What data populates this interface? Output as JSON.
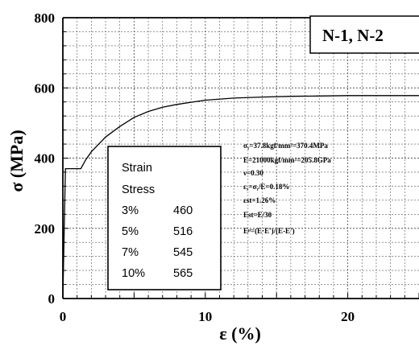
{
  "chart_data": {
    "type": "line",
    "xlabel": "ε (%)",
    "ylabel": "σ (MPa)",
    "xlim": [
      0,
      25
    ],
    "ylim": [
      0,
      800
    ],
    "x_ticks": [
      "0",
      "10",
      "20"
    ],
    "y_ticks": [
      "0",
      "200",
      "400",
      "600",
      "800"
    ],
    "grid": true,
    "series": [
      {
        "x": [
          0,
          0.18,
          1.26,
          1.6,
          2,
          3,
          4,
          5,
          6,
          7,
          8,
          9,
          10,
          12,
          14,
          16,
          18,
          20,
          22,
          25
        ],
        "y": [
          0,
          370,
          370,
          395,
          418,
          460,
          490,
          516,
          533,
          545,
          553,
          559,
          565,
          571,
          574,
          576,
          577,
          578,
          578,
          578
        ]
      }
    ],
    "legend_box": "N-1,  N-2",
    "annotations": [
      "σᵧ=37.8kgf/mm²=370.4MPa",
      "E=21000kgf/mm²=205.8GPa",
      "ν=0.30",
      "εᵧ=σᵧ/E=0.18%",
      "εst=1.26%",
      "Est=E/30",
      "Eᵖ=(E·E')/(E-E')"
    ],
    "table": {
      "header": [
        "Strain",
        "Stress"
      ],
      "rows": [
        [
          "3%",
          "460"
        ],
        [
          "5%",
          "516"
        ],
        [
          "7%",
          "545"
        ],
        [
          "10%",
          "565"
        ]
      ]
    }
  }
}
